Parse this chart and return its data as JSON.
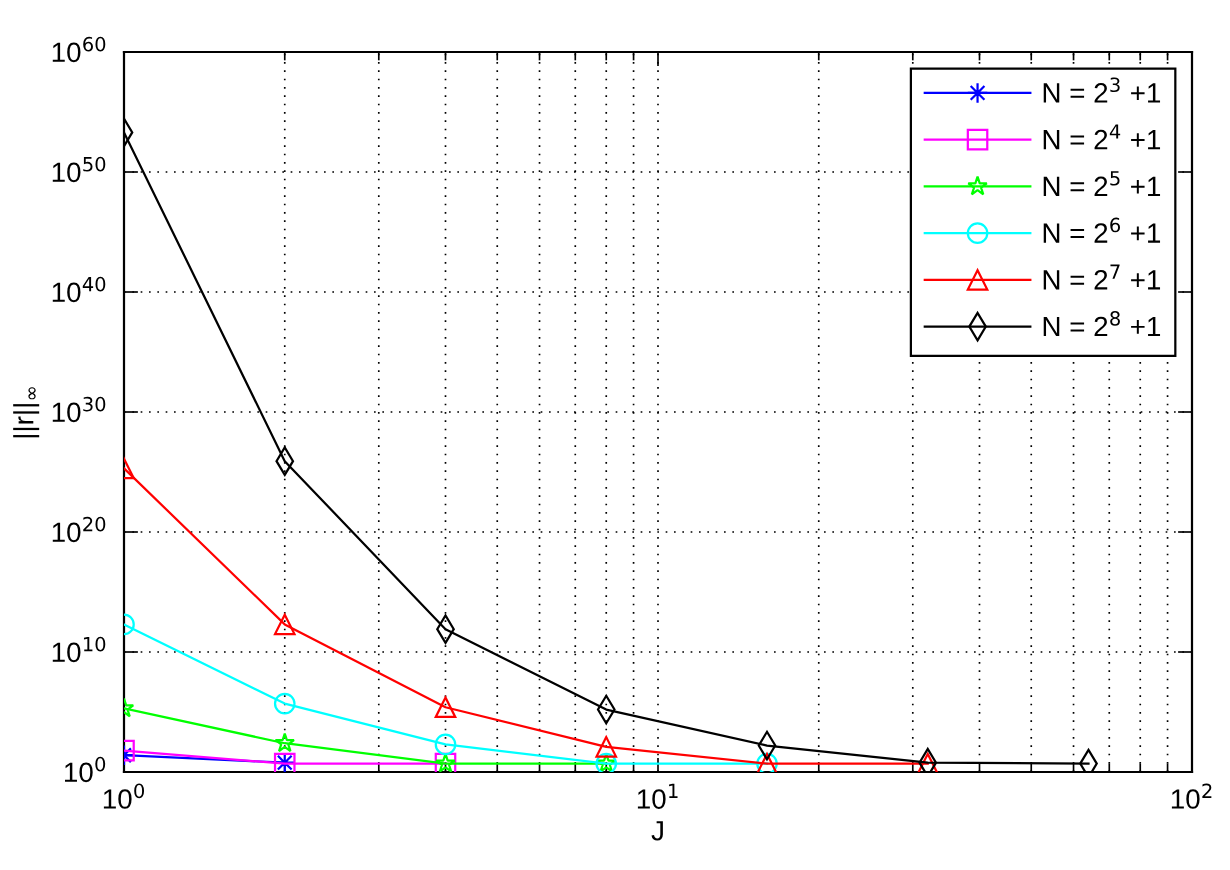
{
  "chart_data": {
    "type": "line",
    "xlabel": "J",
    "ylabel": "||r||$_{∞}$",
    "log": "xy",
    "grid": true,
    "legend": "top right",
    "xlim": [
      1,
      100
    ],
    "xticks": [
      {
        "value": 1,
        "label": "10$^{0}$"
      },
      {
        "value": 2,
        "label": null
      },
      {
        "value": 3,
        "label": null
      },
      {
        "value": 4,
        "label": null
      },
      {
        "value": 5,
        "label": null
      },
      {
        "value": 6,
        "label": null
      },
      {
        "value": 7,
        "label": null
      },
      {
        "value": 8,
        "label": null
      },
      {
        "value": 9,
        "label": null
      },
      {
        "value": 10,
        "label": "10$^{1}$"
      },
      {
        "value": 20,
        "label": null
      },
      {
        "value": 30,
        "label": null
      },
      {
        "value": 40,
        "label": null
      },
      {
        "value": 50,
        "label": null
      },
      {
        "value": 60,
        "label": null
      },
      {
        "value": 70,
        "label": null
      },
      {
        "value": 80,
        "label": null
      },
      {
        "value": 90,
        "label": null
      },
      {
        "value": 100,
        "label": "10$^{2}$"
      }
    ],
    "ylim": [
      1,
      1e+60
    ],
    "yticks": [
      {
        "value": 1,
        "label": "10$^{0}$"
      },
      {
        "value": 10000000000.0,
        "label": "10$^{10}$"
      },
      {
        "value": 1e+20,
        "label": "10$^{20}$"
      },
      {
        "value": 1e+30,
        "label": "10$^{30}$"
      },
      {
        "value": 1e+40,
        "label": "10$^{40}$"
      },
      {
        "value": 1e+50,
        "label": "10$^{50}$"
      },
      {
        "value": 1e+60,
        "label": "10$^{60}$"
      }
    ],
    "series": [
      {
        "name": "N = 2$^{3}$ +1",
        "color": "#0000ff",
        "marker": "cross",
        "x": [
          1,
          2
        ],
        "values": [
          25,
          6
        ]
      },
      {
        "name": "N = 2$^{4}$ +1",
        "color": "#ff00ff",
        "marker": "square",
        "x": [
          1,
          2,
          4
        ],
        "values": [
          60,
          5,
          5
        ]
      },
      {
        "name": "N = 2$^{5}$ +1",
        "color": "#00ff00",
        "marker": "star",
        "x": [
          1,
          2,
          4,
          8
        ],
        "values": [
          200000.0,
          250,
          5,
          5
        ]
      },
      {
        "name": "N = 2$^{6}$ +1",
        "color": "#00ffff",
        "marker": "circle",
        "x": [
          1,
          2,
          4,
          8,
          16
        ],
        "values": [
          2000000000000.0,
          500000.0,
          200,
          5,
          5
        ]
      },
      {
        "name": "N = 2$^{7}$ +1",
        "color": "#ff0000",
        "marker": "triangle",
        "x": [
          1,
          2,
          4,
          8,
          16,
          32
        ],
        "values": [
          2e+25,
          2000000000000.0,
          250000.0,
          125,
          5,
          5
        ]
      },
      {
        "name": "N = 2$^{8}$ +1",
        "color": "#000000",
        "marker": "diamond",
        "x": [
          1,
          2,
          4,
          8,
          16,
          32,
          64
        ],
        "values": [
          2e+53,
          8e+25,
          800000000000.0,
          160000.0,
          160,
          6,
          5
        ]
      }
    ]
  }
}
